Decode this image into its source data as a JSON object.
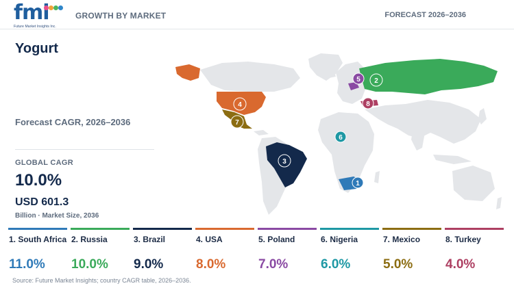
{
  "header": {
    "logo_text": "fmi",
    "logo_tagline": "Future Market Insights Inc.",
    "title": "GROWTH BY MARKET",
    "forecast": "FORECAST 2026–2036"
  },
  "summary": {
    "product": "Yogurt",
    "cagr_caption": "Forecast CAGR, 2026–2036",
    "global_label": "GLOBAL CAGR",
    "global_value": "10.0%",
    "market_size": "USD 601.3",
    "market_size_note": "Billion · Market Size, 2036"
  },
  "countries": [
    {
      "rank": "1",
      "name": "1. South Africa",
      "value": "11.0%",
      "color": "#2f7ab8"
    },
    {
      "rank": "2",
      "name": "2. Russia",
      "value": "10.0%",
      "color": "#3aaa5a"
    },
    {
      "rank": "3",
      "name": "3. Brazil",
      "value": "9.0%",
      "color": "#13294b"
    },
    {
      "rank": "4",
      "name": "4. USA",
      "value": "8.0%",
      "color": "#d9692f"
    },
    {
      "rank": "5",
      "name": "5. Poland",
      "value": "7.0%",
      "color": "#8a4aa3"
    },
    {
      "rank": "6",
      "name": "6. Nigeria",
      "value": "6.0%",
      "color": "#1e98a4"
    },
    {
      "rank": "7",
      "name": "7. Mexico",
      "value": "5.0%",
      "color": "#8c6d12"
    },
    {
      "rank": "8",
      "name": "8. Turkey",
      "value": "4.0%",
      "color": "#ad3f62"
    }
  ],
  "source": "Source: Future Market Insights; country CAGR table, 2026–2036.",
  "colors": {
    "land": "#e4e6e9",
    "logo_dots": [
      "#e94f8a",
      "#f1a23a",
      "#4cb55e",
      "#2f86c9"
    ]
  }
}
